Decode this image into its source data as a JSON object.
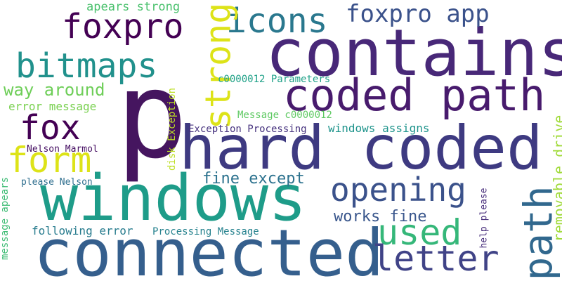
{
  "words": [
    {
      "id": "p",
      "text": "p",
      "color": "#45155f",
      "orientation": "horizontal"
    },
    {
      "id": "contains",
      "text": "contains",
      "color": "#482878",
      "orientation": "horizontal"
    },
    {
      "id": "hard-coded",
      "text": "hard coded",
      "color": "#3e3a81",
      "orientation": "horizontal"
    },
    {
      "id": "windows",
      "text": "windows",
      "color": "#1e9c89",
      "orientation": "horizontal"
    },
    {
      "id": "connected",
      "text": "connected",
      "color": "#355f8d",
      "orientation": "horizontal"
    },
    {
      "id": "coded-path",
      "text": "coded path",
      "color": "#481b6d",
      "orientation": "horizontal"
    },
    {
      "id": "foxpro",
      "text": "foxpro",
      "color": "#440154",
      "orientation": "horizontal"
    },
    {
      "id": "icons",
      "text": "icons",
      "color": "#2a788e",
      "orientation": "horizontal"
    },
    {
      "id": "strong",
      "text": "strong",
      "color": "#dde318",
      "orientation": "vertical"
    },
    {
      "id": "foxpro-app",
      "text": "foxpro app",
      "color": "#3b528b",
      "orientation": "horizontal"
    },
    {
      "id": "bitmaps",
      "text": "bitmaps",
      "color": "#21918c",
      "orientation": "horizontal"
    },
    {
      "id": "fox",
      "text": "fox",
      "color": "#440154",
      "orientation": "horizontal"
    },
    {
      "id": "form",
      "text": "form",
      "color": "#dde318",
      "orientation": "horizontal"
    },
    {
      "id": "opening",
      "text": "opening",
      "color": "#3b528b",
      "orientation": "horizontal"
    },
    {
      "id": "path",
      "text": "path",
      "color": "#31688e",
      "orientation": "vertical"
    },
    {
      "id": "used",
      "text": "used",
      "color": "#35b779",
      "orientation": "horizontal"
    },
    {
      "id": "letter",
      "text": "letter",
      "color": "#404387",
      "orientation": "horizontal"
    },
    {
      "id": "way-around",
      "text": "way around",
      "color": "#6ece58",
      "orientation": "horizontal"
    },
    {
      "id": "works-fine",
      "text": "works fine",
      "color": "#39568c",
      "orientation": "horizontal"
    },
    {
      "id": "fine-except",
      "text": "fine except",
      "color": "#2c728e",
      "orientation": "horizontal"
    },
    {
      "id": "removable-drive",
      "text": "removable drive",
      "color": "#a0da39",
      "orientation": "vertical"
    },
    {
      "id": "apears-strong",
      "text": "apears strong",
      "color": "#4ac16d",
      "orientation": "horizontal"
    },
    {
      "id": "error-message",
      "text": "error message",
      "color": "#7ad151",
      "orientation": "horizontal"
    },
    {
      "id": "c0000012-parameters",
      "text": "c0000012 Parameters",
      "color": "#1fa188",
      "orientation": "horizontal"
    },
    {
      "id": "message-c0000012",
      "text": "Message c0000012",
      "color": "#5ec962",
      "orientation": "horizontal"
    },
    {
      "id": "exception-processing",
      "text": "Exception Processing",
      "color": "#46327e",
      "orientation": "horizontal"
    },
    {
      "id": "windows-assigns",
      "text": "windows assigns",
      "color": "#1f948c",
      "orientation": "horizontal"
    },
    {
      "id": "nelson-marmol",
      "text": "Nelson Marmol",
      "color": "#471063",
      "orientation": "horizontal"
    },
    {
      "id": "please-nelson",
      "text": "please Nelson",
      "color": "#2e6e8e",
      "orientation": "horizontal"
    },
    {
      "id": "disk-exception",
      "text": "disk Exception",
      "color": "#bddf26",
      "orientation": "vertical"
    },
    {
      "id": "message-apears",
      "text": "message apears",
      "color": "#3dbc74",
      "orientation": "vertical"
    },
    {
      "id": "following-error",
      "text": "following error",
      "color": "#287c8e",
      "orientation": "horizontal"
    },
    {
      "id": "processing-message",
      "text": "Processing Message",
      "color": "#26828e",
      "orientation": "horizontal"
    },
    {
      "id": "help-please",
      "text": "help please",
      "color": "#472d7b",
      "orientation": "vertical"
    }
  ]
}
